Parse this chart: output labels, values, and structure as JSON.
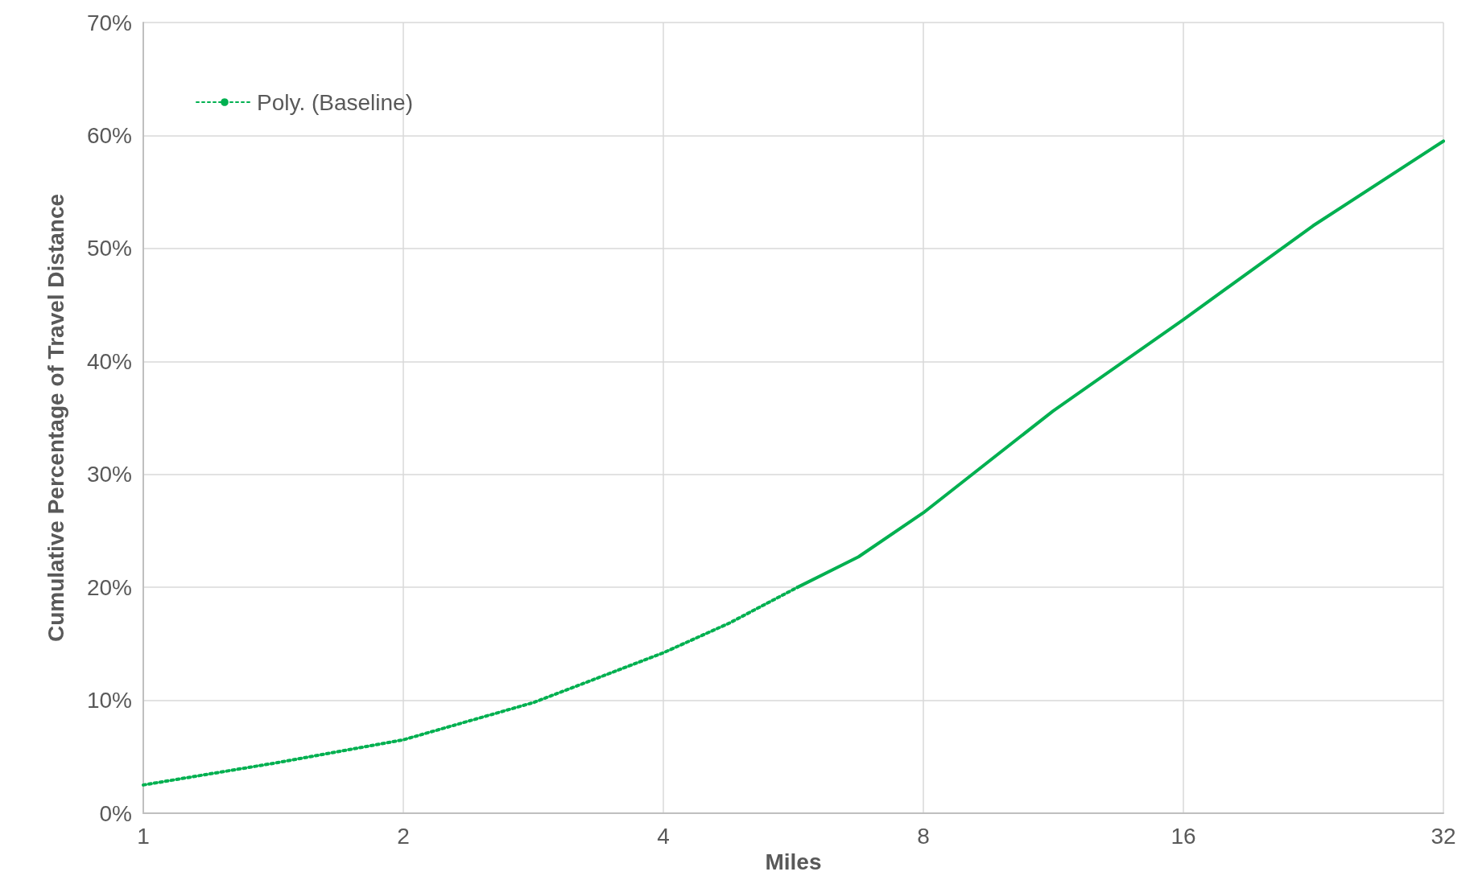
{
  "chart_data": {
    "type": "line",
    "xlabel": "Miles",
    "ylabel": "Cumulative Percentage of Travel Distance",
    "log": "x",
    "xlim": [
      1,
      32
    ],
    "xticks": [
      1,
      2,
      4,
      8,
      16,
      32
    ],
    "ylim": [
      0,
      70
    ],
    "yticks": [
      {
        "value": 0,
        "label": "0%"
      },
      {
        "value": 10,
        "label": "10%"
      },
      {
        "value": 20,
        "label": "20%"
      },
      {
        "value": 30,
        "label": "30%"
      },
      {
        "value": 40,
        "label": "40%"
      },
      {
        "value": 50,
        "label": "50%"
      },
      {
        "value": 60,
        "label": "60%"
      },
      {
        "value": 70,
        "label": "70%"
      }
    ],
    "grid": true,
    "legend": "top left",
    "marker": "none",
    "series": [
      {
        "name": "Poly. (Baseline)",
        "color": "#00b050",
        "line_style": "dotted",
        "x": [
          1,
          1.41,
          2,
          2.83,
          4,
          4.76,
          5.72
        ],
        "values": [
          2.5,
          4.4,
          6.5,
          9.8,
          14.2,
          16.8,
          20
        ]
      },
      {
        "color": "#00b050",
        "line_style": "solid",
        "x": [
          5.72,
          6.73,
          8,
          11.3,
          16,
          22.6,
          32
        ],
        "values": [
          20,
          22.7,
          26.6,
          35.6,
          43.7,
          52,
          59.5
        ]
      }
    ]
  }
}
